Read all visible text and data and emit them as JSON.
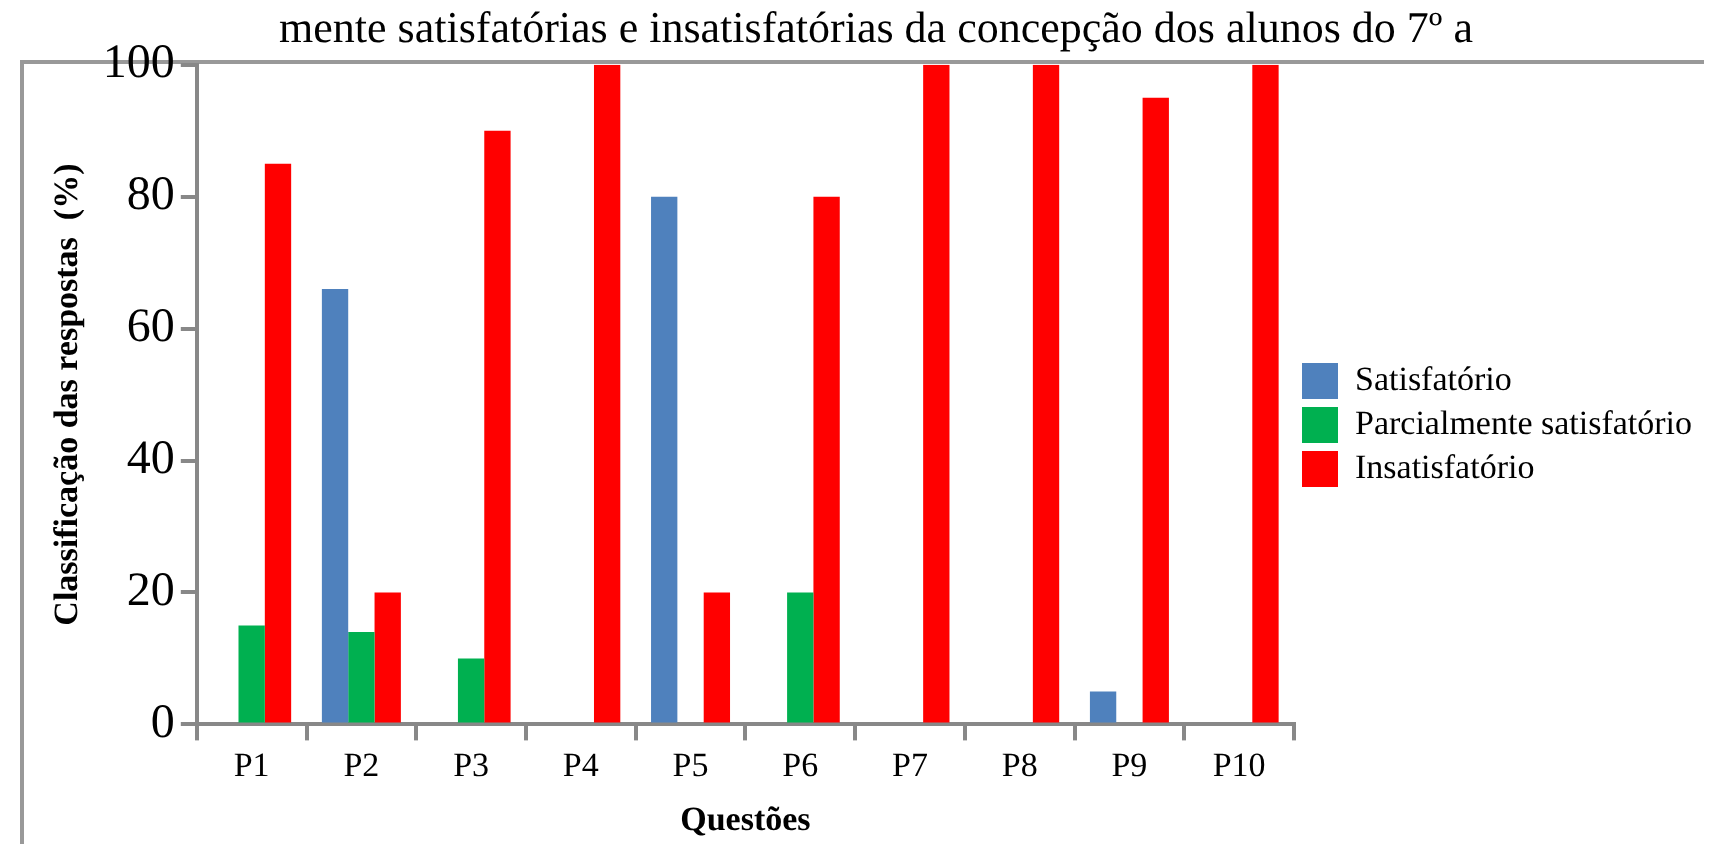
{
  "chart_data": {
    "type": "bar",
    "title": "mente satisfatórias e insatisfatórias da concepção dos alunos do 7º a",
    "xlabel": "Questões",
    "ylabel": "Classificação das respostas  (%)",
    "categories": [
      "P1",
      "P2",
      "P3",
      "P4",
      "P5",
      "P6",
      "P7",
      "P8",
      "P9",
      "P10"
    ],
    "series": [
      {
        "name": "Satisfatório",
        "color": "#4f81bd",
        "values": [
          0,
          66,
          0,
          0,
          80,
          0,
          0,
          0,
          5,
          0
        ]
      },
      {
        "name": "Parcialmente satisfatório",
        "color": "#00b050",
        "values": [
          15,
          14,
          10,
          0,
          0,
          20,
          0,
          0,
          0,
          0
        ]
      },
      {
        "name": "Insatisfatório",
        "color": "#ff0000",
        "values": [
          85,
          20,
          90,
          100,
          20,
          80,
          100,
          100,
          95,
          100
        ]
      }
    ],
    "ylim": [
      0,
      100
    ],
    "yticks": [
      0,
      20,
      40,
      60,
      80,
      100
    ],
    "grid": false,
    "legend": "right"
  }
}
